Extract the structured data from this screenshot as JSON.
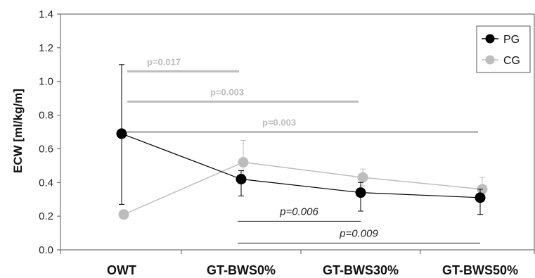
{
  "chart_data": {
    "type": "line",
    "title": "",
    "ylabel": "ECW [ml/kg/m]",
    "xlabel": "",
    "categories": [
      "OWT",
      "GT-BWS0%",
      "GT-BWS30%",
      "GT-BWS50%"
    ],
    "ylim": [
      0,
      1.4
    ],
    "yticks": [
      "0.0",
      "0.2",
      "0.4",
      "0.6",
      "0.8",
      "1.0",
      "1.2",
      "1.4"
    ],
    "grid": false,
    "legend_position": "top-right",
    "series": [
      {
        "name": "PG",
        "color": "#000000",
        "values": [
          0.69,
          0.42,
          0.34,
          0.31
        ],
        "err_low": [
          0.27,
          0.32,
          0.23,
          0.21
        ],
        "err_high": [
          1.1,
          0.47,
          0.4,
          0.36
        ]
      },
      {
        "name": "CG",
        "color": "#bdbdbd",
        "values": [
          0.21,
          0.52,
          0.43,
          0.36
        ],
        "err_low": [
          0.21,
          0.4,
          0.38,
          0.29
        ],
        "err_high": [
          0.21,
          0.65,
          0.48,
          0.43
        ]
      }
    ],
    "annotations": [
      {
        "text": "p=0.017",
        "group": "CG",
        "from": 0,
        "to": 1,
        "y": 1.06
      },
      {
        "text": "p=0.003",
        "group": "CG",
        "from": 0,
        "to": 2,
        "y": 0.88
      },
      {
        "text": "p=0.003",
        "group": "CG",
        "from": 0,
        "to": 3,
        "y": 0.7
      },
      {
        "text": "p=0.006",
        "group": "PG",
        "from": 1,
        "to": 2,
        "y": 0.17
      },
      {
        "text": "p=0.009",
        "group": "PG",
        "from": 1,
        "to": 3,
        "y": 0.04
      }
    ]
  }
}
